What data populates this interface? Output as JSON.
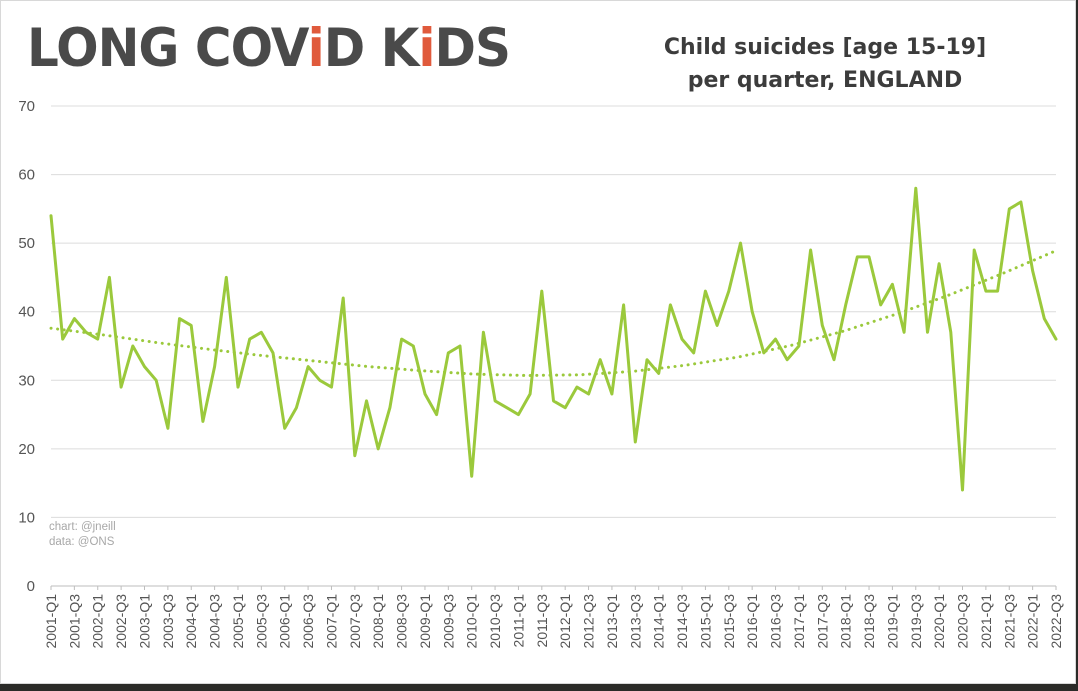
{
  "logo": {
    "part1": "LONG COV",
    "accent": "i",
    "part2": "D K",
    "accent2": "i",
    "part3": "DS"
  },
  "title_line1": "Child suicides [age 15-19]",
  "title_line2": "per quarter, ENGLAND",
  "credit_chart": "chart: @jneill",
  "credit_data": "data: @ONS",
  "colors": {
    "line": "#9bc93c",
    "trend": "#9bc93c",
    "grid": "#dcdcdc",
    "axis_text": "#555555"
  },
  "chart_data": {
    "type": "line",
    "title": "Child suicides [age 15-19] per quarter, ENGLAND",
    "xlabel": "",
    "ylabel": "",
    "ylim": [
      0,
      70
    ],
    "yticks": [
      0,
      10,
      20,
      30,
      40,
      50,
      60,
      70
    ],
    "grid": true,
    "x_tick_labels": [
      "2001-Q1",
      "2001-Q3",
      "2002-Q1",
      "2002-Q3",
      "2003-Q1",
      "2003-Q3",
      "2004-Q1",
      "2004-Q3",
      "2005-Q1",
      "2005-Q3",
      "2006-Q1",
      "2006-Q3",
      "2007-Q1",
      "2007-Q3",
      "2008-Q1",
      "2008-Q3",
      "2009-Q1",
      "2009-Q3",
      "2010-Q1",
      "2010-Q3",
      "2011-Q1",
      "2011-Q3",
      "2012-Q1",
      "2012-Q3",
      "2013-Q1",
      "2013-Q3",
      "2014-Q1",
      "2014-Q3",
      "2015-Q1",
      "2015-Q3",
      "2016-Q1",
      "2016-Q3",
      "2017-Q1",
      "2017-Q3",
      "2018-Q1",
      "2018-Q3",
      "2019-Q1",
      "2019-Q3",
      "2020-Q1",
      "2020-Q3",
      "2021-Q1",
      "2021-Q3",
      "2022-Q1",
      "2022-Q3"
    ],
    "series": [
      {
        "style": "solid",
        "values": [
          54,
          36,
          39,
          37,
          36,
          45,
          29,
          35,
          32,
          30,
          23,
          39,
          38,
          24,
          32,
          45,
          29,
          36,
          37,
          34,
          23,
          26,
          32,
          30,
          29,
          42,
          19,
          27,
          20,
          26,
          36,
          35,
          28,
          25,
          34,
          35,
          16,
          37,
          27,
          26,
          25,
          28,
          43,
          27,
          26,
          29,
          28,
          33,
          28,
          41,
          21,
          33,
          31,
          41,
          36,
          34,
          43,
          38,
          43,
          50,
          40,
          34,
          36,
          33,
          35,
          49,
          38,
          33,
          41,
          48,
          48,
          41,
          44,
          37,
          58,
          37,
          47,
          37,
          14,
          49,
          43,
          43,
          55,
          56,
          46,
          39,
          36
        ]
      },
      {
        "style": "dotted-trendline",
        "values": [
          37.6,
          36.6,
          35.5,
          34.5,
          33.6,
          32.8,
          32.0,
          31.4,
          30.9,
          30.7,
          30.8,
          31.3,
          32.2,
          33.4,
          35.1,
          37.2,
          39.7,
          42.5,
          45.6,
          48.9
        ]
      }
    ]
  }
}
